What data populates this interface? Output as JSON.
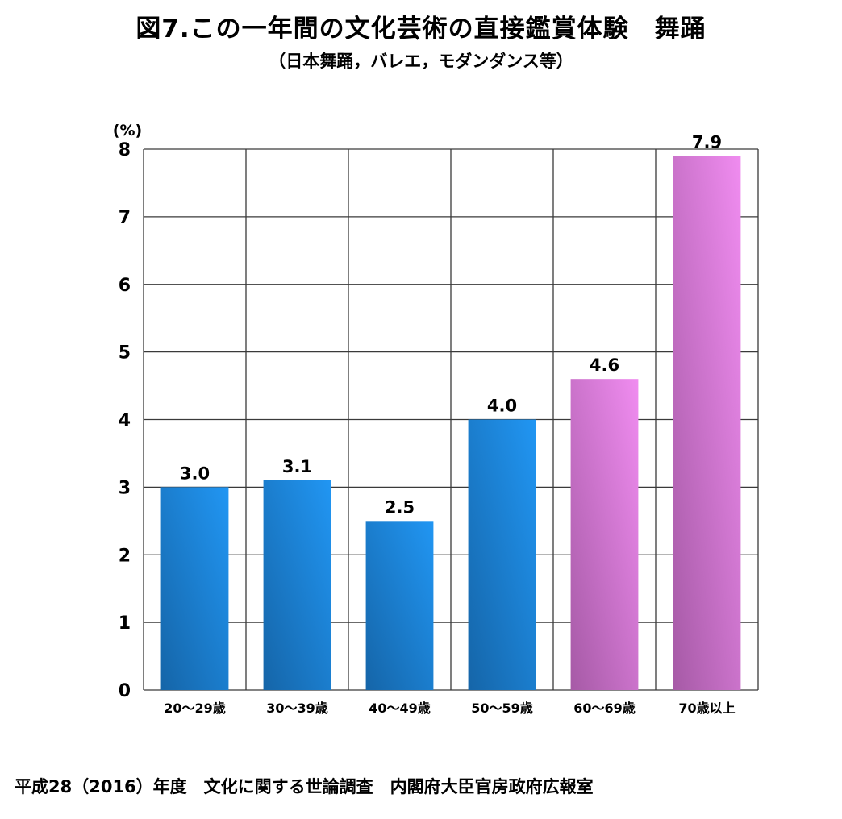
{
  "title": "図7.この一年間の文化芸術の直接鑑賞体験　舞踊",
  "subtitle": "（日本舞踊，バレエ，モダンダンス等）",
  "footer": "平成28（2016）年度　文化に関する世論調査　内閣府大臣官房政府広報室",
  "chart_data": {
    "type": "bar",
    "ylabel": "(%)",
    "ylim": [
      0,
      8
    ],
    "yticks": [
      "0",
      "1",
      "2",
      "3",
      "4",
      "5",
      "6",
      "7",
      "8"
    ],
    "grid": true,
    "categories": [
      "20～29歳",
      "30～39歳",
      "40～49歳",
      "50～59歳",
      "60～69歳",
      "70歳以上"
    ],
    "values": [
      3.0,
      3.1,
      2.5,
      4.0,
      4.6,
      7.9
    ],
    "data_labels": [
      "3.0",
      "3.1",
      "2.5",
      "4.0",
      "4.6",
      "7.9"
    ],
    "bar_colors": [
      "#2196f3",
      "#2196f3",
      "#2196f3",
      "#2196f3",
      "#f08cf0",
      "#f08cf0"
    ],
    "bar_colors_dark": [
      "#1565a8",
      "#1565a8",
      "#1565a8",
      "#1565a8",
      "#a65aa6",
      "#a65aa6"
    ]
  }
}
